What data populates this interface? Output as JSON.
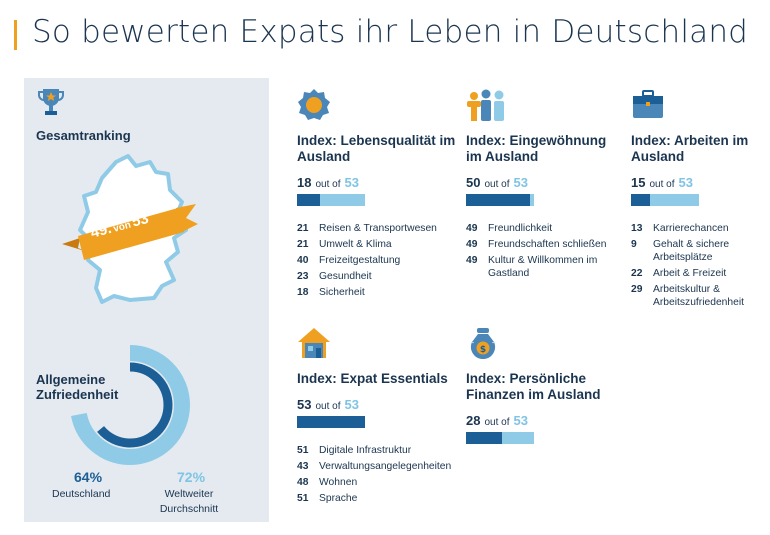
{
  "title": "So bewerten Expats ihr Leben in Deutschland",
  "colors": {
    "accent": "#f0a020",
    "dark_blue": "#1b5f96",
    "light_blue": "#8fcbe7",
    "text": "#1b3550",
    "panel": "#e4eaf0"
  },
  "overall": {
    "label": "Gesamtranking",
    "rank": "49.",
    "of_text": "von",
    "total": "53",
    "icon": "trophy-icon"
  },
  "satisfaction": {
    "label": "Allgemeine Zufriedenheit",
    "germany_value": 64,
    "germany_pct": "64%",
    "germany_label": "Deutschland",
    "world_value": 72,
    "world_pct": "72%",
    "world_label": "Weltweiter Durchschnitt"
  },
  "indices": [
    {
      "icon": "medal-icon",
      "title": "Index: Lebensqualität im Ausland",
      "rank": "18",
      "of_text": "out of",
      "total": "53",
      "rank_value": 18,
      "total_value": 53,
      "items": [
        {
          "n": "21",
          "t": "Reisen & Transportwesen"
        },
        {
          "n": "21",
          "t": "Umwelt & Klima"
        },
        {
          "n": "40",
          "t": "Freizeitgestaltung"
        },
        {
          "n": "23",
          "t": "Gesundheit"
        },
        {
          "n": "18",
          "t": "Sicherheit"
        }
      ]
    },
    {
      "icon": "people-icon",
      "title": "Index: Eingewöhnung im Ausland",
      "rank": "50",
      "of_text": "out of",
      "total": "53",
      "rank_value": 50,
      "total_value": 53,
      "items": [
        {
          "n": "49",
          "t": "Freundlichkeit"
        },
        {
          "n": "49",
          "t": "Freundschaften schließen"
        },
        {
          "n": "49",
          "t": "Kultur & Willkommen im Gastland"
        }
      ]
    },
    {
      "icon": "briefcase-icon",
      "title": "Index: Arbeiten im Ausland",
      "rank": "15",
      "of_text": "out of",
      "total": "53",
      "rank_value": 15,
      "total_value": 53,
      "items": [
        {
          "n": "13",
          "t": "Karrierechancen"
        },
        {
          "n": "9",
          "t": "Gehalt & sichere Arbeitsplätze"
        },
        {
          "n": "22",
          "t": "Arbeit & Freizeit"
        },
        {
          "n": "29",
          "t": "Arbeitskultur & Arbeitszufriedenheit"
        }
      ]
    },
    {
      "icon": "house-icon",
      "title": "Index: Expat Essentials",
      "rank": "53",
      "of_text": "out of",
      "total": "53",
      "rank_value": 53,
      "total_value": 53,
      "items": [
        {
          "n": "51",
          "t": "Digitale Infrastruktur"
        },
        {
          "n": "43",
          "t": "Verwaltungsangelegenheiten"
        },
        {
          "n": "48",
          "t": "Wohnen"
        },
        {
          "n": "51",
          "t": "Sprache"
        }
      ]
    },
    {
      "icon": "money-bag-icon",
      "title": "Index: Persönliche Finanzen im Ausland",
      "rank": "28",
      "of_text": "out of",
      "total": "53",
      "rank_value": 28,
      "total_value": 53,
      "items": []
    }
  ]
}
